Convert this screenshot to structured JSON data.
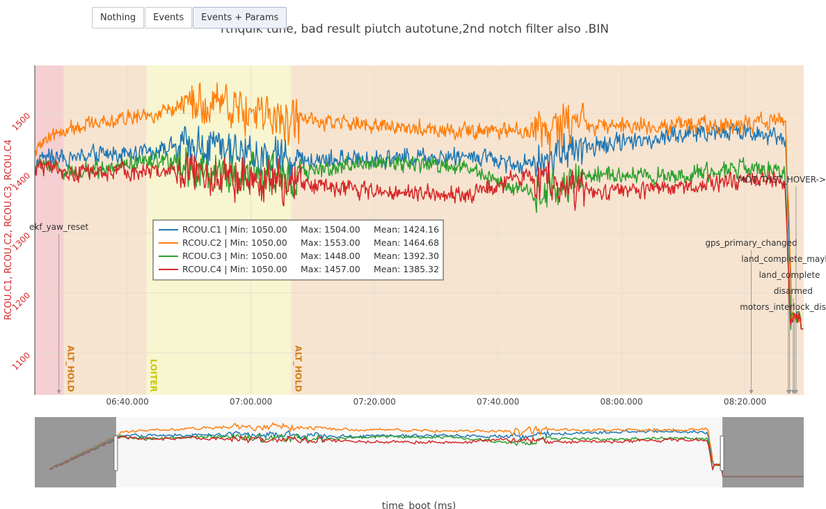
{
  "toolbar": {
    "buttons": [
      "Nothing",
      "Events",
      "Events + Params"
    ]
  },
  "chart_data": {
    "type": "line",
    "title": "rthquik tune, bad result piutch autotune,2nd notch filter also .BIN",
    "xlabel": "time_boot (ms)",
    "ylabel": "RCOU.C1, RCOU.C2, RCOU.C3, RCOU.C4",
    "x_range_seconds": [
      24250,
      25495
    ],
    "x_ticks": [
      {
        "t": 24400,
        "label": "06:40.000"
      },
      {
        "t": 24600,
        "label": "07:00.000"
      },
      {
        "t": 24800,
        "label": "07:20.000"
      },
      {
        "t": 25000,
        "label": "07:40.000"
      },
      {
        "t": 25200,
        "label": "08:00.000"
      },
      {
        "t": 25400,
        "label": "08:20.000"
      }
    ],
    "ylim": [
      1030,
      1580
    ],
    "y_ticks": [
      1100,
      1200,
      1300,
      1400,
      1500
    ],
    "mode_bands": [
      {
        "start": 24250,
        "end": 24297,
        "color": "#f5cfd2"
      },
      {
        "start": 24297,
        "end": 24431,
        "color": "#f7e4d0",
        "label": "ALT_HOLD",
        "label_color": "#d47c14"
      },
      {
        "start": 24431,
        "end": 24665,
        "color": "#f7f6d0",
        "label": "LOITER",
        "label_color": "#c8c800"
      },
      {
        "start": 24665,
        "end": 25495,
        "color": "#f7e4d0",
        "label": "ALT_HOLD",
        "label_color": "#d47c14"
      }
    ],
    "events": [
      {
        "t": 24289,
        "label": "ekf_yaw_reset"
      },
      {
        "t": 25410,
        "label": "gps_primary_changed"
      },
      {
        "t": 25470,
        "label": "land_complete_maybe"
      },
      {
        "t": 25472,
        "label": "land_complete"
      },
      {
        "t": 25478,
        "label": "disarmed"
      },
      {
        "t": 25480,
        "label": "motors_interlock_disabled"
      }
    ],
    "param_markers": [
      {
        "t": 25525,
        "label": "MOT_THST_HOVER->"
      }
    ],
    "series": [
      {
        "name": "RCOU.C1",
        "color": "#1f77b4",
        "min": 1050.0,
        "max": 1504.0,
        "mean": 1424.16
      },
      {
        "name": "RCOU.C2",
        "color": "#ff7f0e",
        "min": 1050.0,
        "max": 1553.0,
        "mean": 1464.68
      },
      {
        "name": "RCOU.C3",
        "color": "#2ca02c",
        "min": 1050.0,
        "max": 1448.0,
        "mean": 1392.3
      },
      {
        "name": "RCOU.C4",
        "color": "#d62728",
        "min": 1050.0,
        "max": 1457.0,
        "mean": 1385.32
      }
    ],
    "legend_position": "center-left",
    "grid": true,
    "range_slider": {
      "full_range_seconds": [
        24083,
        25662
      ],
      "selected_range_seconds": [
        24250,
        25495
      ]
    }
  }
}
